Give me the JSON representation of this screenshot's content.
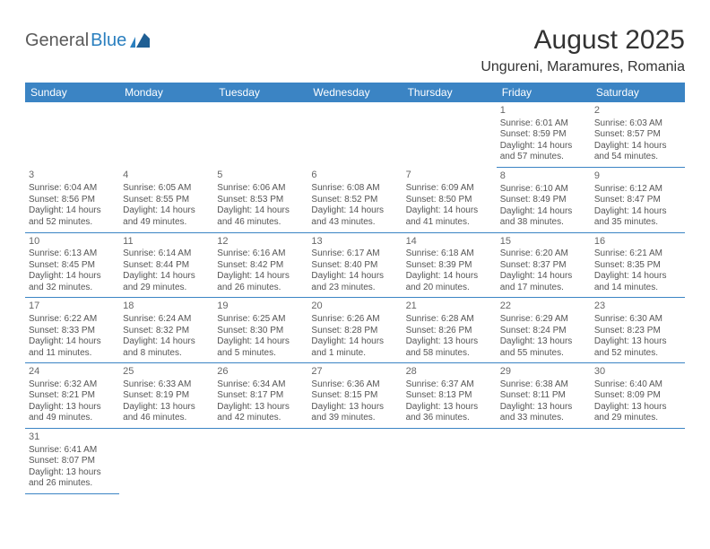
{
  "logo": {
    "part1": "General",
    "part2": "Blue"
  },
  "title": "August 2025",
  "location": "Ungureni, Maramures, Romania",
  "colors": {
    "header_bg": "#3b84c4",
    "header_text": "#ffffff",
    "border": "#3b84c4",
    "text": "#555555",
    "logo_gray": "#5a5a5a",
    "logo_blue": "#2a7fbf"
  },
  "weekdays": [
    "Sunday",
    "Monday",
    "Tuesday",
    "Wednesday",
    "Thursday",
    "Friday",
    "Saturday"
  ],
  "cells": [
    [
      null,
      null,
      null,
      null,
      null,
      {
        "n": "1",
        "sr": "6:01 AM",
        "ss": "8:59 PM",
        "dl": "14 hours and 57 minutes."
      },
      {
        "n": "2",
        "sr": "6:03 AM",
        "ss": "8:57 PM",
        "dl": "14 hours and 54 minutes."
      }
    ],
    [
      {
        "n": "3",
        "sr": "6:04 AM",
        "ss": "8:56 PM",
        "dl": "14 hours and 52 minutes."
      },
      {
        "n": "4",
        "sr": "6:05 AM",
        "ss": "8:55 PM",
        "dl": "14 hours and 49 minutes."
      },
      {
        "n": "5",
        "sr": "6:06 AM",
        "ss": "8:53 PM",
        "dl": "14 hours and 46 minutes."
      },
      {
        "n": "6",
        "sr": "6:08 AM",
        "ss": "8:52 PM",
        "dl": "14 hours and 43 minutes."
      },
      {
        "n": "7",
        "sr": "6:09 AM",
        "ss": "8:50 PM",
        "dl": "14 hours and 41 minutes."
      },
      {
        "n": "8",
        "sr": "6:10 AM",
        "ss": "8:49 PM",
        "dl": "14 hours and 38 minutes."
      },
      {
        "n": "9",
        "sr": "6:12 AM",
        "ss": "8:47 PM",
        "dl": "14 hours and 35 minutes."
      }
    ],
    [
      {
        "n": "10",
        "sr": "6:13 AM",
        "ss": "8:45 PM",
        "dl": "14 hours and 32 minutes."
      },
      {
        "n": "11",
        "sr": "6:14 AM",
        "ss": "8:44 PM",
        "dl": "14 hours and 29 minutes."
      },
      {
        "n": "12",
        "sr": "6:16 AM",
        "ss": "8:42 PM",
        "dl": "14 hours and 26 minutes."
      },
      {
        "n": "13",
        "sr": "6:17 AM",
        "ss": "8:40 PM",
        "dl": "14 hours and 23 minutes."
      },
      {
        "n": "14",
        "sr": "6:18 AM",
        "ss": "8:39 PM",
        "dl": "14 hours and 20 minutes."
      },
      {
        "n": "15",
        "sr": "6:20 AM",
        "ss": "8:37 PM",
        "dl": "14 hours and 17 minutes."
      },
      {
        "n": "16",
        "sr": "6:21 AM",
        "ss": "8:35 PM",
        "dl": "14 hours and 14 minutes."
      }
    ],
    [
      {
        "n": "17",
        "sr": "6:22 AM",
        "ss": "8:33 PM",
        "dl": "14 hours and 11 minutes."
      },
      {
        "n": "18",
        "sr": "6:24 AM",
        "ss": "8:32 PM",
        "dl": "14 hours and 8 minutes."
      },
      {
        "n": "19",
        "sr": "6:25 AM",
        "ss": "8:30 PM",
        "dl": "14 hours and 5 minutes."
      },
      {
        "n": "20",
        "sr": "6:26 AM",
        "ss": "8:28 PM",
        "dl": "14 hours and 1 minute."
      },
      {
        "n": "21",
        "sr": "6:28 AM",
        "ss": "8:26 PM",
        "dl": "13 hours and 58 minutes."
      },
      {
        "n": "22",
        "sr": "6:29 AM",
        "ss": "8:24 PM",
        "dl": "13 hours and 55 minutes."
      },
      {
        "n": "23",
        "sr": "6:30 AM",
        "ss": "8:23 PM",
        "dl": "13 hours and 52 minutes."
      }
    ],
    [
      {
        "n": "24",
        "sr": "6:32 AM",
        "ss": "8:21 PM",
        "dl": "13 hours and 49 minutes."
      },
      {
        "n": "25",
        "sr": "6:33 AM",
        "ss": "8:19 PM",
        "dl": "13 hours and 46 minutes."
      },
      {
        "n": "26",
        "sr": "6:34 AM",
        "ss": "8:17 PM",
        "dl": "13 hours and 42 minutes."
      },
      {
        "n": "27",
        "sr": "6:36 AM",
        "ss": "8:15 PM",
        "dl": "13 hours and 39 minutes."
      },
      {
        "n": "28",
        "sr": "6:37 AM",
        "ss": "8:13 PM",
        "dl": "13 hours and 36 minutes."
      },
      {
        "n": "29",
        "sr": "6:38 AM",
        "ss": "8:11 PM",
        "dl": "13 hours and 33 minutes."
      },
      {
        "n": "30",
        "sr": "6:40 AM",
        "ss": "8:09 PM",
        "dl": "13 hours and 29 minutes."
      }
    ],
    [
      {
        "n": "31",
        "sr": "6:41 AM",
        "ss": "8:07 PM",
        "dl": "13 hours and 26 minutes."
      },
      null,
      null,
      null,
      null,
      null,
      null
    ]
  ],
  "labels": {
    "sunrise": "Sunrise: ",
    "sunset": "Sunset: ",
    "daylight": "Daylight: "
  }
}
